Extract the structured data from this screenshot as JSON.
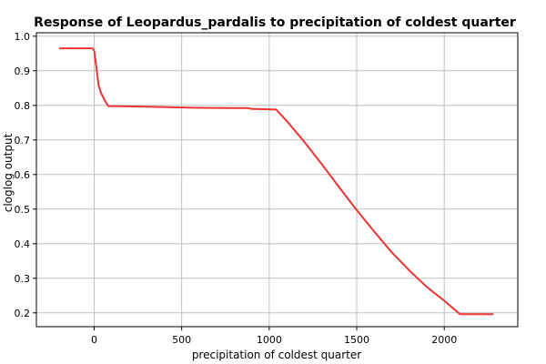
{
  "chart_data": {
    "type": "line",
    "title": "Response of Leopardus_pardalis to precipitation of coldest quarter",
    "xlabel": "precipitation of coldest quarter",
    "ylabel": "cloglog output",
    "xlim": [
      -330,
      2420
    ],
    "ylim": [
      0.16,
      1.01
    ],
    "xticks": [
      0,
      500,
      1000,
      1500,
      2000
    ],
    "yticks": [
      0.2,
      0.3,
      0.4,
      0.5,
      0.6,
      0.7,
      0.8,
      0.9,
      1.0
    ],
    "xtick_labels": [
      "0",
      "500",
      "1000",
      "1500",
      "2000"
    ],
    "ytick_labels": [
      "0.2",
      "0.3",
      "0.4",
      "0.5",
      "0.6",
      "0.7",
      "0.8",
      "0.9",
      "1.0"
    ],
    "grid": true,
    "line_color": "#ee3333",
    "series": [
      {
        "x": [
          -200,
          -10,
          0,
          15,
          25,
          40,
          60,
          80,
          100,
          300,
          600,
          880,
          900,
          1040,
          1100,
          1200,
          1300,
          1400,
          1500,
          1600,
          1700,
          1800,
          1900,
          2000,
          2090,
          2280
        ],
        "values": [
          0.965,
          0.965,
          0.958,
          0.9,
          0.858,
          0.835,
          0.815,
          0.798,
          0.798,
          0.796,
          0.793,
          0.792,
          0.79,
          0.788,
          0.755,
          0.695,
          0.63,
          0.563,
          0.497,
          0.435,
          0.375,
          0.323,
          0.275,
          0.235,
          0.196,
          0.196
        ]
      }
    ]
  }
}
